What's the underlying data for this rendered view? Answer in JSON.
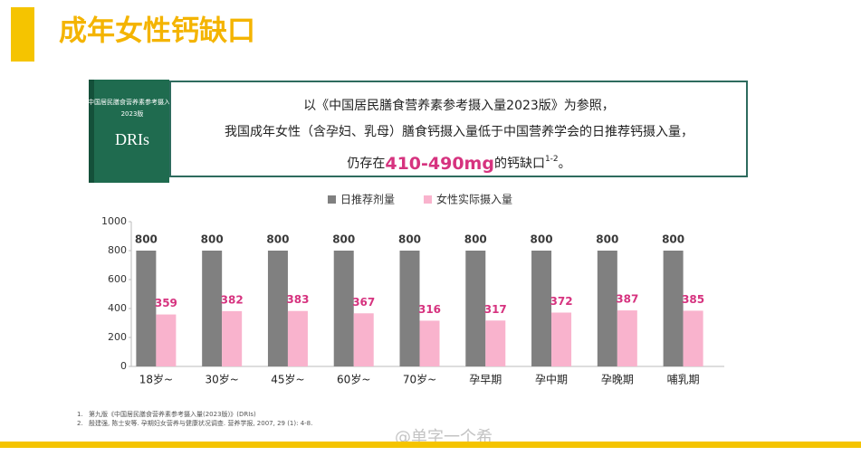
{
  "header": {
    "title": "成年女性钙缺口"
  },
  "book": {
    "title": "中国居民膳食营养素参考摄入量",
    "edition": "2023版",
    "acronym": "DRIs"
  },
  "callout": {
    "line1": "以《中国居民膳食营养素参考摄入量2023版》为参照，",
    "line2": "我国成年女性（含孕妇、乳母）膳食钙摄入量低于中国营养学会的日推荐钙摄入量，",
    "line3_before": "仍存在",
    "line3_highlight": "410-490mg",
    "line3_after": "的钙缺口",
    "line3_sup": "1-2",
    "line3_end": "。"
  },
  "chart_data": {
    "type": "bar",
    "categories": [
      "18岁~",
      "30岁~",
      "45岁~",
      "60岁~",
      "70岁~",
      "孕早期",
      "孕中期",
      "孕晚期",
      "哺乳期"
    ],
    "series": [
      {
        "name": "日推荐剂量",
        "color": "#808080",
        "label_color": "#3a3a3a",
        "values": [
          800,
          800,
          800,
          800,
          800,
          800,
          800,
          800,
          800
        ]
      },
      {
        "name": "女性实际摄入量",
        "color": "#f9b3cd",
        "label_color": "#d6337f",
        "values": [
          359,
          382,
          383,
          367,
          316,
          317,
          372,
          387,
          385
        ]
      }
    ],
    "ylim": [
      0,
      1000
    ],
    "yticks": [
      0,
      200,
      400,
      600,
      800,
      1000
    ],
    "grid": false,
    "legend": "top"
  },
  "footnotes": [
    "1.",
    "第九版《中国居民膳食营养素参考摄入量(2023版)》(DRIs)",
    "2.",
    "殷建强, 陈士安等. 孕期妇女营养与健康状况调查. 营养学报, 2007, 29 (1): 4-8."
  ],
  "watermark": "@单字一个希"
}
